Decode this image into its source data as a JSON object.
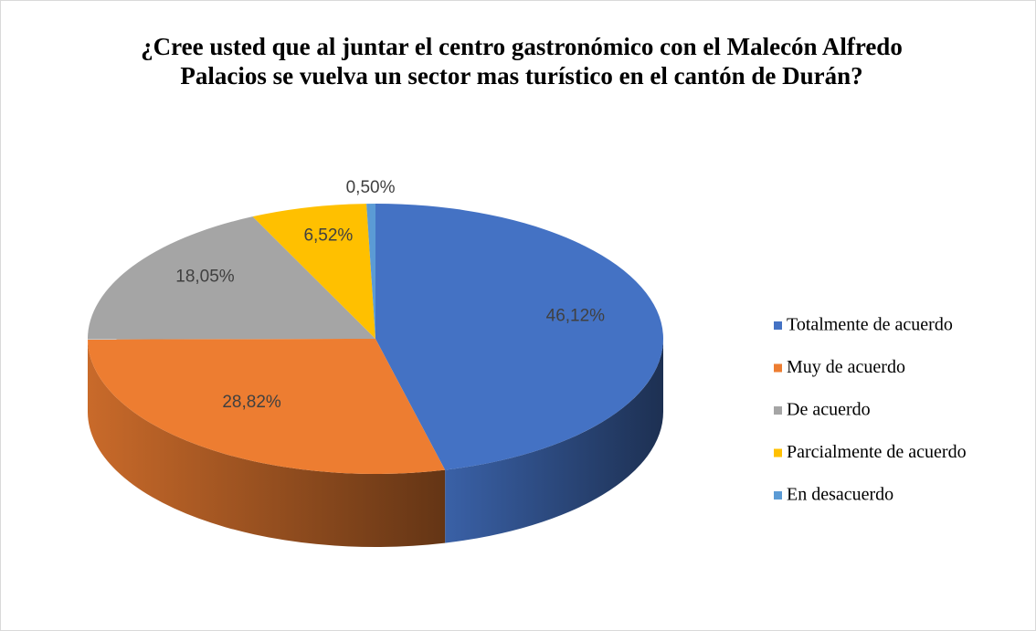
{
  "chart_data": {
    "type": "pie",
    "title": "¿Cree usted que al juntar el centro gastronómico con el Malecón Alfredo Palacios se vuelva un sector mas turístico en el cantón de Durán?",
    "categories": [
      "Totalmente de acuerdo",
      "Muy de acuerdo",
      "De acuerdo",
      "Parcialmente de acuerdo",
      "En desacuerdo"
    ],
    "values": [
      46.12,
      28.82,
      18.05,
      6.52,
      0.5
    ],
    "value_labels": [
      "46,12%",
      "28,82%",
      "18,05%",
      "6,52%",
      "0,50%"
    ],
    "colors": [
      "#4472c4",
      "#ed7d31",
      "#a5a5a5",
      "#ffc000",
      "#5b9bd5"
    ],
    "legend": "right"
  }
}
